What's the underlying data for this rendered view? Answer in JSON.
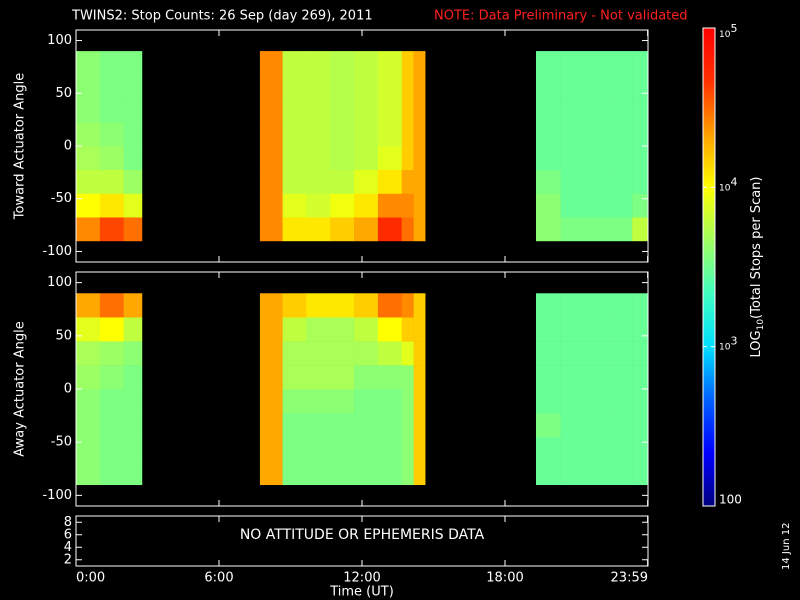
{
  "chart_data": {
    "type": "heatmap",
    "title": "TWINS2: Stop Counts: 26 Sep (day 269), 2011",
    "note": "NOTE: Data Preliminary - Not validated",
    "x_label": "Time (UT)",
    "xlim": [
      0,
      1440
    ],
    "xticks": [
      {
        "value": 0,
        "label": "0:00"
      },
      {
        "value": 360,
        "label": "6:00"
      },
      {
        "value": 720,
        "label": "12:00"
      },
      {
        "value": 1080,
        "label": "18:00"
      },
      {
        "value": 1439,
        "label": "23:59"
      }
    ],
    "x_bins": [
      0,
      60,
      120,
      166,
      463,
      520,
      580,
      640,
      700,
      760,
      820,
      850,
      879,
      1158,
      1220,
      1280,
      1340,
      1400,
      1440
    ],
    "y_bins": [
      -90,
      -67.5,
      -45,
      -22.5,
      0,
      22.5,
      45,
      67.5,
      90
    ],
    "colorscale": [
      "#000080",
      "#0000ff",
      "#0060ff",
      "#00e0ff",
      "#40ffc0",
      "#a0ff60",
      "#ffff00",
      "#ffa000",
      "#ff3000",
      "#ff0000"
    ],
    "zlim": [
      100,
      100000
    ],
    "z_log": true,
    "z_label": {
      "text": "LOG",
      "subscript": "10",
      "rest": "(Total Stops per Scan)"
    },
    "zticks": [
      100,
      {
        "value": 1000,
        "label": "10",
        "exponent": "3"
      },
      {
        "value": 10000,
        "label": "10",
        "exponent": "4"
      },
      {
        "value": 100000,
        "label": "10",
        "exponent": "5"
      }
    ],
    "date_stamp": "14 Jun 12",
    "panels": [
      {
        "y_label": "Toward Actuator Angle",
        "ylim": [
          -110,
          110
        ],
        "yticks": [
          -100,
          -50,
          0,
          50,
          100
        ],
        "z": [
          [
            25000,
            10000,
            6000,
            5000,
            4500,
            4000,
            4000,
            4000
          ],
          [
            40000,
            12000,
            6000,
            4500,
            4000,
            3500,
            3500,
            3500
          ],
          [
            30000,
            8000,
            4500,
            3500,
            3500,
            3500,
            3500,
            3500
          ],
          null,
          [
            25000,
            25000,
            25000,
            25000,
            25000,
            25000,
            25000,
            25000
          ],
          [
            12000,
            8000,
            6000,
            6000,
            6000,
            6000,
            6000,
            6000
          ],
          [
            12000,
            7000,
            6000,
            6000,
            6000,
            6000,
            6000,
            6000
          ],
          [
            15000,
            9000,
            6000,
            5500,
            5500,
            5500,
            5500,
            5500
          ],
          [
            20000,
            12000,
            8000,
            6000,
            6000,
            6000,
            6000,
            6000
          ],
          [
            50000,
            25000,
            12000,
            8000,
            7000,
            7000,
            7000,
            7000
          ],
          [
            30000,
            25000,
            20000,
            15000,
            15000,
            15000,
            15000,
            15000
          ],
          [
            20000,
            20000,
            20000,
            20000,
            20000,
            20000,
            20000,
            20000
          ],
          null,
          [
            4000,
            4000,
            3500,
            3000,
            3000,
            3000,
            3000,
            3000
          ],
          [
            3500,
            3000,
            3000,
            3000,
            3000,
            3000,
            3000,
            3000
          ],
          [
            3500,
            3000,
            3000,
            3000,
            3000,
            3000,
            3000,
            3000
          ],
          [
            3500,
            3000,
            3000,
            3000,
            3000,
            3000,
            3000,
            3000
          ],
          [
            6000,
            3500,
            3000,
            3000,
            3000,
            3000,
            3000,
            3000
          ]
        ]
      },
      {
        "y_label": "Away Actuator Angle",
        "ylim": [
          -110,
          110
        ],
        "yticks": [
          -100,
          -50,
          0,
          50,
          100
        ],
        "z": [
          [
            4000,
            4000,
            4000,
            4000,
            4500,
            5000,
            8000,
            20000
          ],
          [
            3500,
            3500,
            3500,
            3500,
            4000,
            4500,
            10000,
            30000
          ],
          [
            3500,
            3500,
            3500,
            3500,
            3500,
            4000,
            6000,
            20000
          ],
          null,
          [
            20000,
            20000,
            20000,
            20000,
            20000,
            20000,
            20000,
            20000
          ],
          [
            3500,
            3500,
            3500,
            4000,
            5000,
            5000,
            6000,
            15000
          ],
          [
            3500,
            3500,
            3500,
            4000,
            5000,
            5000,
            5000,
            12000
          ],
          [
            3500,
            3500,
            3500,
            4000,
            5000,
            5000,
            5000,
            12000
          ],
          [
            3500,
            3500,
            3500,
            3500,
            4000,
            5000,
            6000,
            15000
          ],
          [
            3500,
            3500,
            3500,
            3500,
            4000,
            6000,
            10000,
            30000
          ],
          [
            4000,
            4000,
            4000,
            4000,
            4000,
            8000,
            15000,
            25000
          ],
          [
            15000,
            15000,
            15000,
            15000,
            15000,
            15000,
            15000,
            15000
          ],
          null,
          [
            3000,
            3000,
            3500,
            3000,
            3000,
            3000,
            3000,
            3000
          ],
          [
            3000,
            3000,
            3000,
            3000,
            3000,
            3000,
            3000,
            3000
          ],
          [
            3000,
            3000,
            3000,
            3000,
            3000,
            3000,
            3000,
            3000
          ],
          [
            3000,
            3000,
            3000,
            3000,
            3000,
            3000,
            3000,
            3000
          ],
          [
            3000,
            3000,
            3000,
            3000,
            3000,
            3000,
            3000,
            3000
          ]
        ]
      },
      {
        "ylim": [
          1,
          9
        ],
        "yticks": [
          2,
          4,
          6,
          8
        ],
        "message": "NO ATTITUDE OR EPHEMERIS DATA"
      }
    ]
  }
}
